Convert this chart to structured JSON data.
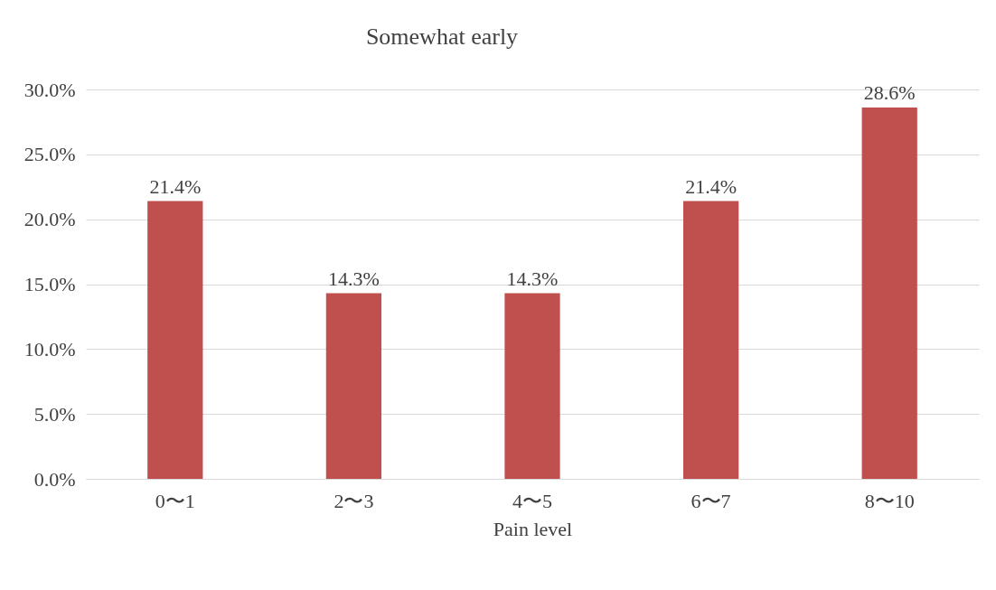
{
  "chart_data": {
    "type": "bar",
    "title": "Somewhat early",
    "xlabel": "Pain level",
    "categories": [
      "0〜1",
      "2〜3",
      "4〜5",
      "6〜7",
      "8〜10"
    ],
    "values": [
      21.4,
      14.3,
      14.3,
      21.4,
      28.6
    ],
    "value_labels": [
      "21.4%",
      "14.3%",
      "14.3%",
      "21.4%",
      "28.6%"
    ],
    "color": "#c0504d",
    "ylim": [
      0,
      30
    ],
    "yticks": [
      {
        "value": 0,
        "label": "0.0%"
      },
      {
        "value": 5,
        "label": "5.0%"
      },
      {
        "value": 10,
        "label": "10.0%"
      },
      {
        "value": 15,
        "label": "15.0%"
      },
      {
        "value": 20,
        "label": "20.0%"
      },
      {
        "value": 25,
        "label": "25.0%"
      },
      {
        "value": 30,
        "label": "30.0%"
      }
    ],
    "grid": "y"
  }
}
